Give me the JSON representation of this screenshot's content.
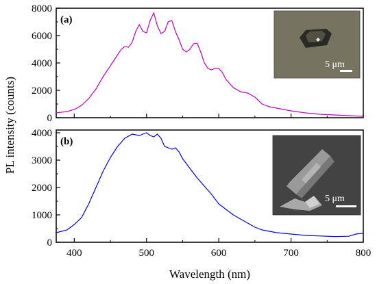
{
  "chart_data": {
    "type": "line",
    "ylabel": "PL intensity (counts)",
    "xlabel": "Wavelength (nm)",
    "xlim": [
      375,
      800
    ],
    "x_ticks": [
      400,
      500,
      600,
      700,
      800
    ],
    "panels": [
      {
        "label": "(a)",
        "color": "#c000c0",
        "ylim": [
          0,
          8000
        ],
        "y_ticks": [
          0,
          2000,
          4000,
          6000,
          8000
        ],
        "inset": {
          "kind": "optical-micrograph",
          "scale_label": "5 μm"
        },
        "series": [
          {
            "x": [
              375,
              390,
              400,
              410,
              420,
              430,
              440,
              450,
              460,
              465,
              470,
              475,
              480,
              485,
              490,
              495,
              500,
              505,
              510,
              515,
              520,
              525,
              530,
              535,
              540,
              545,
              550,
              555,
              560,
              565,
              570,
              575,
              580,
              585,
              590,
              595,
              600,
              605,
              610,
              620,
              630,
              640,
              650,
              660,
              670,
              680,
              690,
              700,
              720,
              740,
              760,
              780,
              800
            ],
            "y": [
              350,
              450,
              600,
              900,
              1400,
              2100,
              3000,
              3800,
              4600,
              5000,
              5200,
              5150,
              5500,
              6300,
              6800,
              6300,
              6200,
              7100,
              7650,
              6700,
              6150,
              6300,
              7000,
              7100,
              6300,
              5700,
              5000,
              4800,
              5000,
              5400,
              5450,
              4800,
              4000,
              3600,
              3500,
              3600,
              3600,
              3300,
              2800,
              2200,
              1900,
              1800,
              1500,
              1000,
              800,
              700,
              600,
              500,
              350,
              250,
              200,
              150,
              100
            ]
          }
        ]
      },
      {
        "label": "(b)",
        "color": "#0000e0",
        "ylim": [
          0,
          4100
        ],
        "y_ticks": [
          0,
          1000,
          2000,
          3000,
          4000
        ],
        "inset": {
          "kind": "sem-micrograph",
          "scale_label": "5 μm"
        },
        "series": [
          {
            "x": [
              375,
              390,
              400,
              410,
              420,
              430,
              440,
              450,
              460,
              470,
              480,
              490,
              495,
              500,
              505,
              510,
              515,
              520,
              525,
              530,
              535,
              540,
              545,
              550,
              560,
              570,
              580,
              590,
              600,
              610,
              620,
              630,
              640,
              650,
              660,
              680,
              700,
              720,
              740,
              760,
              780,
              790,
              800
            ],
            "y": [
              350,
              450,
              650,
              900,
              1400,
              2000,
              2600,
              3100,
              3500,
              3800,
              3950,
              3900,
              3950,
              4000,
              3900,
              3850,
              3950,
              3800,
              3500,
              3450,
              3400,
              3450,
              3300,
              3050,
              2700,
              2350,
              2050,
              1750,
              1400,
              1200,
              1000,
              850,
              700,
              550,
              450,
              350,
              300,
              250,
              230,
              210,
              220,
              300,
              330
            ]
          }
        ]
      }
    ]
  }
}
